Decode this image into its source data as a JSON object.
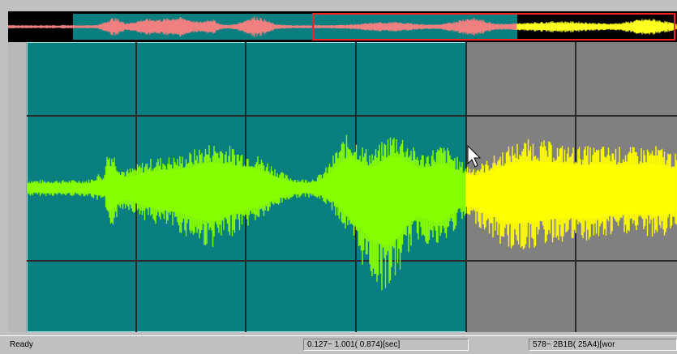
{
  "status": {
    "ready": "Ready",
    "time_range": "0.127~  1.001(  0.874)[sec]",
    "sample_range": "578~  2B1B(  25A4)[wor"
  },
  "colors": {
    "selection_bg": "#0a7f7f",
    "unselected_bg": "#808080",
    "selected_wave": "#88ff00",
    "unselected_wave": "#ffff00",
    "overview_wave": "#f08080",
    "overview_frame": "#ff2020",
    "grid": "#2a2a2a"
  },
  "icons": [
    "mouse-pointer-icon"
  ]
}
